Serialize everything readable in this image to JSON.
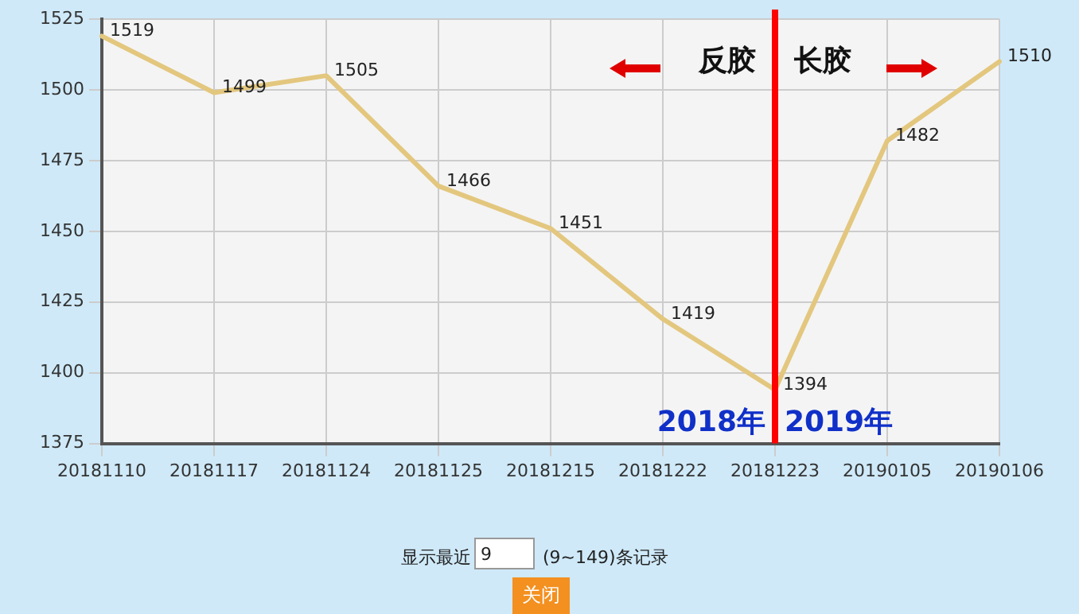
{
  "chart_data": {
    "type": "line",
    "categories": [
      "20181110",
      "20181117",
      "20181124",
      "20181125",
      "20181215",
      "20181222",
      "20181223",
      "20190105",
      "20190106"
    ],
    "series": [
      {
        "color": "#e3c77e",
        "values": [
          1519,
          1499,
          1505,
          1466,
          1451,
          1419,
          1394,
          1482,
          1510
        ]
      }
    ],
    "ylim": [
      1375,
      1525
    ],
    "yticks": [
      1375,
      1400,
      1425,
      1450,
      1475,
      1500,
      1525
    ],
    "grid": true,
    "legend": false,
    "marker": "none",
    "line_style": "solid",
    "data_labels": true,
    "ref_lines": [
      {
        "axis": "x",
        "value": "20181223",
        "color": "#ff0000"
      }
    ],
    "annotations": [
      "反胶",
      "长胶",
      "2018年",
      "2019年",
      "显示最近",
      "9",
      "(9~149)条记录",
      "关闭"
    ]
  }
}
